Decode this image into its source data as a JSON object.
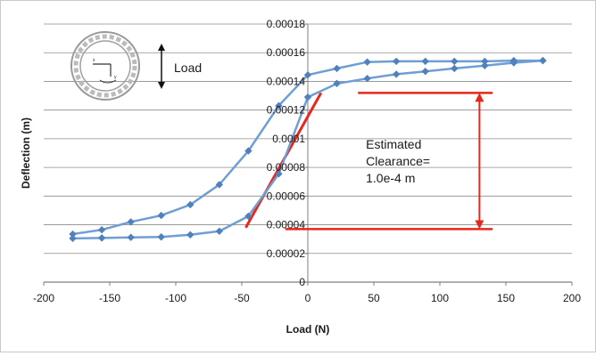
{
  "chart_data": {
    "type": "line",
    "title": "",
    "xlabel": "Load (N)",
    "ylabel": "Deflection (m)",
    "xlim": [
      -200,
      200
    ],
    "ylim": [
      0,
      0.00018
    ],
    "x_ticks": [
      "-200",
      "-150",
      "-100",
      "-50",
      "0",
      "50",
      "100",
      "150",
      "200"
    ],
    "y_ticks": [
      "0",
      "0.00002",
      "0.00004",
      "0.00006",
      "0.00008",
      "0.0001",
      "0.00012",
      "0.00014",
      "0.00016",
      "0.00018"
    ],
    "grid": "horizontal",
    "legend": "none",
    "series": [
      {
        "x": [
          -178,
          -156,
          -134,
          -111,
          -89,
          -67,
          -45,
          -22,
          0,
          22,
          45,
          67,
          89,
          111,
          134,
          156,
          178
        ],
        "y": [
          3.35e-05,
          3.65e-05,
          4.2e-05,
          4.65e-05,
          5.4e-05,
          6.8e-05,
          9.15e-05,
          0.000123,
          0.0001445,
          0.000149,
          0.0001535,
          0.000154,
          0.000154,
          0.000154,
          0.000154,
          0.0001545,
          0.0001545
        ]
      },
      {
        "x": [
          -178,
          -156,
          -134,
          -111,
          -89,
          -67,
          -45,
          -22,
          0,
          22,
          45,
          67,
          89,
          111,
          134,
          156,
          178
        ],
        "y": [
          3.05e-05,
          3.08e-05,
          3.12e-05,
          3.15e-05,
          3.3e-05,
          3.55e-05,
          4.6e-05,
          7.55e-05,
          0.000129,
          0.0001385,
          0.000142,
          0.000145,
          0.000147,
          0.000149,
          0.000151,
          0.000153,
          0.0001545
        ]
      }
    ],
    "annotations": {
      "tangent_line": {
        "x": [
          -47,
          10
        ],
        "y": [
          3.8e-05,
          0.000132
        ]
      },
      "upper_level": {
        "x": [
          38,
          140
        ],
        "y": 0.000132
      },
      "lower_level": {
        "x": [
          -17,
          140
        ],
        "y": 3.7e-05
      },
      "arrow_x": 130,
      "text_lines": [
        "Estimated",
        "Clearance=",
        "1.0e-4 m"
      ],
      "inset_label": "Load"
    },
    "colors": {
      "series": "#6f9ed3",
      "marker": "#4f81bd",
      "annotation": "#e8261c",
      "grid": "#8c8c8c"
    }
  }
}
